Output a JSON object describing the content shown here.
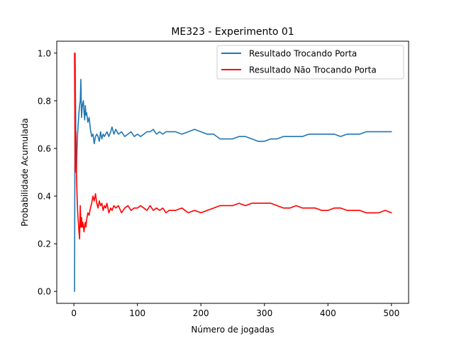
{
  "chart_data": {
    "type": "line",
    "title": "ME323 - Experimento 01",
    "xlabel": "Número de jogadas",
    "ylabel": "Probabilidade Acumulada",
    "xlim": [
      -27,
      527
    ],
    "ylim": [
      -0.05,
      1.05
    ],
    "xticks": [
      0,
      100,
      200,
      300,
      400,
      500
    ],
    "yticks": [
      0.0,
      0.2,
      0.4,
      0.6,
      0.8,
      1.0
    ],
    "grid": false,
    "legend_position": "top-right",
    "series": [
      {
        "name": "Resultado Trocando Porta",
        "color": "#1f77b4",
        "x": [
          1,
          2,
          3,
          4,
          5,
          6,
          7,
          8,
          9,
          10,
          11,
          12,
          13,
          14,
          15,
          16,
          17,
          18,
          19,
          20,
          22,
          24,
          26,
          28,
          30,
          32,
          34,
          36,
          38,
          40,
          42,
          44,
          46,
          48,
          50,
          52,
          55,
          58,
          60,
          63,
          66,
          70,
          75,
          80,
          85,
          90,
          95,
          100,
          105,
          110,
          115,
          120,
          125,
          130,
          135,
          140,
          145,
          150,
          160,
          170,
          180,
          190,
          200,
          210,
          220,
          230,
          240,
          250,
          260,
          270,
          280,
          290,
          300,
          310,
          320,
          330,
          340,
          350,
          360,
          370,
          380,
          390,
          400,
          410,
          420,
          430,
          440,
          450,
          460,
          470,
          480,
          490,
          500
        ],
        "values": [
          0.0,
          1.0,
          0.67,
          0.5,
          0.6,
          0.67,
          0.71,
          0.75,
          0.78,
          0.8,
          0.89,
          0.73,
          0.77,
          0.79,
          0.8,
          0.75,
          0.72,
          0.78,
          0.74,
          0.75,
          0.71,
          0.73,
          0.68,
          0.65,
          0.66,
          0.62,
          0.65,
          0.66,
          0.65,
          0.63,
          0.67,
          0.64,
          0.66,
          0.65,
          0.66,
          0.67,
          0.65,
          0.67,
          0.69,
          0.66,
          0.68,
          0.66,
          0.67,
          0.65,
          0.66,
          0.67,
          0.65,
          0.66,
          0.65,
          0.66,
          0.67,
          0.67,
          0.68,
          0.66,
          0.67,
          0.66,
          0.67,
          0.67,
          0.67,
          0.66,
          0.67,
          0.68,
          0.67,
          0.66,
          0.66,
          0.64,
          0.64,
          0.64,
          0.65,
          0.65,
          0.64,
          0.63,
          0.63,
          0.64,
          0.64,
          0.65,
          0.65,
          0.65,
          0.65,
          0.66,
          0.66,
          0.66,
          0.66,
          0.66,
          0.65,
          0.66,
          0.66,
          0.66,
          0.67,
          0.67,
          0.67,
          0.67,
          0.67
        ]
      },
      {
        "name": "Resultado Não Trocando Porta",
        "color": "#ff0000",
        "x": [
          1,
          2,
          3,
          4,
          5,
          6,
          7,
          8,
          9,
          10,
          11,
          12,
          13,
          14,
          15,
          16,
          17,
          18,
          19,
          20,
          22,
          24,
          26,
          28,
          30,
          32,
          34,
          36,
          38,
          40,
          42,
          44,
          46,
          48,
          50,
          52,
          55,
          58,
          60,
          63,
          66,
          70,
          75,
          80,
          85,
          90,
          95,
          100,
          105,
          110,
          115,
          120,
          125,
          130,
          135,
          140,
          145,
          150,
          160,
          170,
          180,
          190,
          200,
          210,
          220,
          230,
          240,
          250,
          260,
          270,
          280,
          290,
          300,
          310,
          320,
          330,
          340,
          350,
          360,
          370,
          380,
          390,
          400,
          410,
          420,
          430,
          440,
          450,
          460,
          470,
          480,
          490,
          500
        ],
        "values": [
          1.0,
          0.5,
          0.67,
          0.5,
          0.4,
          0.33,
          0.29,
          0.25,
          0.22,
          0.36,
          0.27,
          0.31,
          0.27,
          0.29,
          0.27,
          0.25,
          0.28,
          0.29,
          0.27,
          0.3,
          0.33,
          0.32,
          0.35,
          0.37,
          0.4,
          0.38,
          0.41,
          0.37,
          0.35,
          0.38,
          0.36,
          0.37,
          0.34,
          0.36,
          0.35,
          0.37,
          0.33,
          0.35,
          0.34,
          0.36,
          0.35,
          0.36,
          0.33,
          0.35,
          0.36,
          0.34,
          0.35,
          0.35,
          0.36,
          0.35,
          0.34,
          0.36,
          0.34,
          0.35,
          0.34,
          0.35,
          0.33,
          0.34,
          0.34,
          0.35,
          0.33,
          0.34,
          0.33,
          0.34,
          0.35,
          0.36,
          0.36,
          0.36,
          0.37,
          0.36,
          0.37,
          0.37,
          0.37,
          0.37,
          0.36,
          0.35,
          0.35,
          0.36,
          0.35,
          0.35,
          0.35,
          0.34,
          0.34,
          0.35,
          0.35,
          0.34,
          0.34,
          0.34,
          0.33,
          0.33,
          0.33,
          0.34,
          0.33
        ]
      }
    ]
  }
}
